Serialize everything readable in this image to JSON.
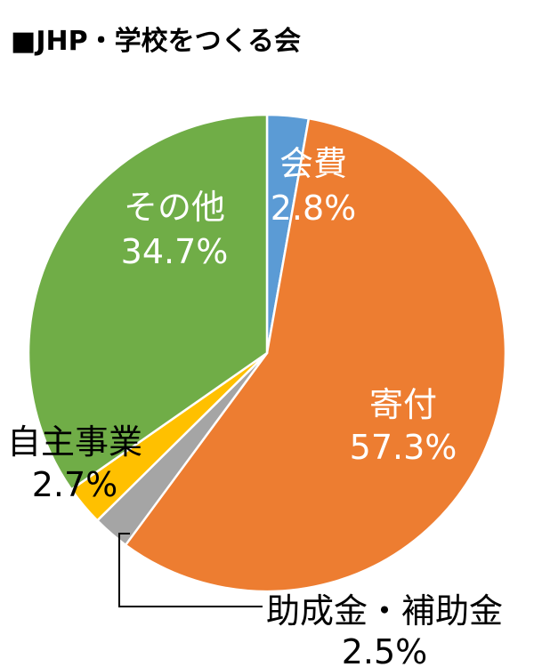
{
  "chart_data": {
    "type": "pie",
    "title": "■JHP・学校をつくる会",
    "slices": [
      {
        "name": "会費",
        "value": 2.8,
        "label": "2.8%",
        "color": "#5b9bd5"
      },
      {
        "name": "寄付",
        "value": 57.3,
        "label": "57.3%",
        "color": "#ed7d31"
      },
      {
        "name": "助成金・補助金",
        "value": 2.5,
        "label": "2.5%",
        "color": "#a5a5a5"
      },
      {
        "name": "自主事業",
        "value": 2.7,
        "label": "2.7%",
        "color": "#ffc000"
      },
      {
        "name": "その他",
        "value": 34.7,
        "label": "34.7%",
        "color": "#70ad47"
      }
    ]
  }
}
